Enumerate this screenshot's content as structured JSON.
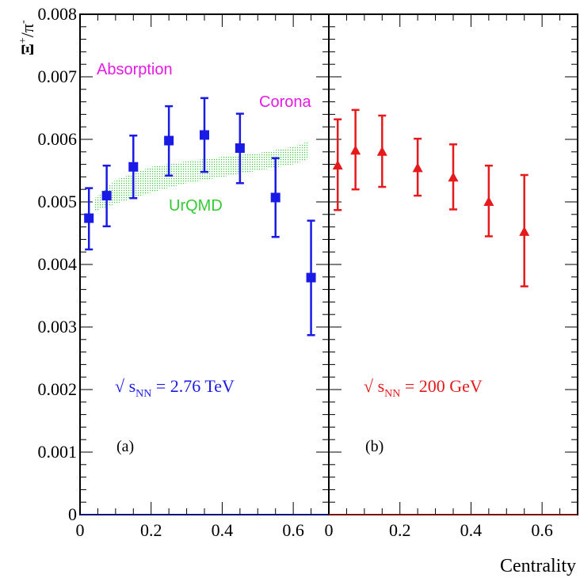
{
  "chart_data": [
    {
      "type": "scatter",
      "panel_label": "(a)",
      "energy_label": {
        "prefix": "√ s",
        "sub": "NN",
        "suffix": " = 2.76 TeV"
      },
      "ylabel": {
        "main": "Ξ",
        "sup1": "+",
        "slash": "/π",
        "sup2": "-"
      },
      "ylim": [
        0,
        0.008
      ],
      "xlim": [
        0,
        0.7
      ],
      "yticks": [
        "0",
        "0.001",
        "0.002",
        "0.003",
        "0.004",
        "0.005",
        "0.006",
        "0.007",
        "0.008"
      ],
      "xticks": [
        "0",
        "0.2",
        "0.4",
        "0.6"
      ],
      "annotations": {
        "absorption": "Absorption",
        "corona": "Corona",
        "model": "UrQMD"
      },
      "series": [
        {
          "marker": "square",
          "color": "#1a1ae6",
          "x": [
            0.025,
            0.075,
            0.15,
            0.25,
            0.35,
            0.45,
            0.55,
            0.65
          ],
          "y": [
            0.00474,
            0.0051,
            0.00556,
            0.00598,
            0.00607,
            0.00586,
            0.00507,
            0.00379
          ],
          "err_low": [
            0.0005,
            0.00049,
            0.0005,
            0.00056,
            0.00059,
            0.00056,
            0.00063,
            0.00092
          ],
          "err_high": [
            0.00048,
            0.00048,
            0.0005,
            0.00055,
            0.00059,
            0.00055,
            0.00063,
            0.00091
          ]
        }
      ],
      "band": {
        "color": "#33cc33",
        "x": [
          0.04,
          0.1,
          0.2,
          0.3,
          0.4,
          0.5,
          0.6,
          0.64
        ],
        "low": [
          0.00485,
          0.00497,
          0.00515,
          0.0053,
          0.0054,
          0.0055,
          0.0056,
          0.00568
        ],
        "high": [
          0.00505,
          0.00535,
          0.00556,
          0.00565,
          0.00572,
          0.00578,
          0.00588,
          0.00596
        ]
      }
    },
    {
      "type": "scatter",
      "panel_label": "(b)",
      "energy_label": {
        "prefix": "√ s",
        "sub": "NN",
        "suffix": " = 200 GeV"
      },
      "xlabel": "Centrality",
      "xlim": [
        0,
        0.7
      ],
      "xticks": [
        "0",
        "0.2",
        "0.4",
        "0.6"
      ],
      "series": [
        {
          "marker": "triangle",
          "color": "#e61a1a",
          "x": [
            0.025,
            0.075,
            0.15,
            0.25,
            0.35,
            0.45,
            0.55
          ],
          "y": [
            0.00558,
            0.00582,
            0.0058,
            0.00554,
            0.00539,
            0.005,
            0.00452
          ],
          "err_low": [
            0.00071,
            0.00062,
            0.00056,
            0.00044,
            0.00051,
            0.00055,
            0.00087
          ],
          "err_high": [
            0.00074,
            0.00065,
            0.00058,
            0.00047,
            0.00053,
            0.00058,
            0.00091
          ]
        }
      ]
    }
  ]
}
